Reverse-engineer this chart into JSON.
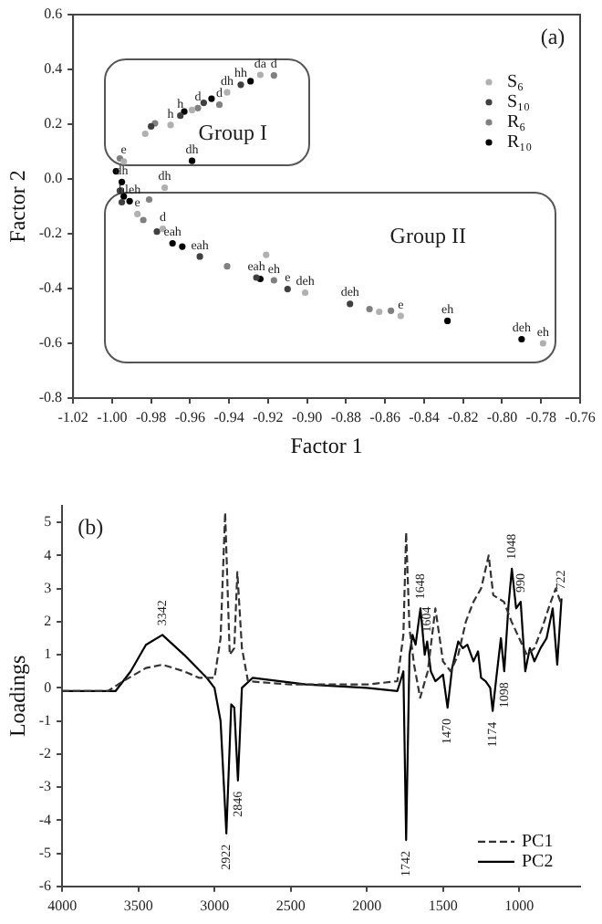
{
  "chart_data": [
    {
      "type": "scatter",
      "xlabel": "Factor 1",
      "ylabel": "Factor 2",
      "xlim": [
        -1.02,
        -0.76
      ],
      "ylim": [
        -0.8,
        0.6
      ],
      "xticks": [
        -1.02,
        {
          "value": -1,
          "label": "-1.00"
        },
        -0.98,
        -0.96,
        -0.94,
        -0.92,
        {
          "value": -0.9,
          "label": "-0.90"
        },
        -0.88,
        -0.86,
        -0.84,
        -0.82,
        {
          "value": -0.8,
          "label": "-0.80"
        },
        -0.78,
        -0.76
      ],
      "yticks": [
        -0.8,
        -0.6,
        -0.4,
        -0.2,
        {
          "value": 0,
          "label": "0.0"
        },
        0.2,
        0.4,
        0.6
      ],
      "legend": "right",
      "marker": "circle",
      "series": [
        {
          "name": "S₆",
          "color": "#b0b0b0",
          "x": [
            -0.994,
            -0.983,
            -0.97,
            -0.959,
            -0.941,
            -0.924,
            -0.973,
            -0.987,
            -0.974,
            -0.921,
            -0.901,
            -0.863,
            -0.852,
            -0.779
          ],
          "values": [
            0.064,
            0.165,
            0.197,
            0.252,
            0.316,
            0.38,
            -0.032,
            -0.128,
            -0.182,
            -0.277,
            -0.415,
            -0.485,
            -0.5,
            -0.6
          ]
        },
        {
          "name": "S₁₀",
          "color": "#404040",
          "x": [
            -0.98,
            -0.965,
            -0.953,
            -0.934,
            -0.996,
            -0.995,
            -0.977,
            -0.955,
            -0.926,
            -0.91,
            -0.878
          ],
          "values": [
            0.192,
            0.231,
            0.278,
            0.344,
            -0.043,
            -0.085,
            -0.192,
            -0.283,
            -0.36,
            -0.402,
            -0.456
          ]
        },
        {
          "name": "R₆",
          "color": "#808080",
          "x": [
            -0.996,
            -0.978,
            -0.956,
            -0.945,
            -0.917,
            -0.981,
            -0.984,
            -0.941,
            -0.917,
            -0.868,
            -0.857
          ],
          "values": [
            0.075,
            0.203,
            0.259,
            0.271,
            0.378,
            -0.075,
            -0.15,
            -0.319,
            -0.37,
            -0.475,
            -0.481
          ]
        },
        {
          "name": "R₁₀",
          "color": "#000000",
          "x": [
            -0.998,
            -0.963,
            -0.949,
            -0.929,
            -0.959,
            -0.995,
            -0.994,
            -0.991,
            -0.969,
            -0.964,
            -0.924,
            -0.828,
            -0.79
          ],
          "values": [
            0.028,
            0.246,
            0.293,
            0.357,
            0.066,
            -0.011,
            -0.064,
            -0.081,
            -0.235,
            -0.247,
            -0.365,
            -0.518,
            -0.585
          ]
        }
      ],
      "annotations": [
        "(a)",
        "Group I",
        "Group II",
        {
          "text": "e",
          "x": -0.994,
          "y": 0.064
        },
        {
          "text": "h",
          "x": -0.965,
          "y": 0.231
        },
        {
          "text": "d",
          "x": -0.956,
          "y": 0.259
        },
        {
          "text": "d",
          "x": -0.945,
          "y": 0.271
        },
        {
          "text": "hh",
          "x": -0.934,
          "y": 0.344
        },
        {
          "text": "da",
          "x": -0.924,
          "y": 0.38
        },
        {
          "text": "h",
          "x": -0.97,
          "y": 0.197
        },
        {
          "text": "d",
          "x": -0.917,
          "y": 0.378
        },
        {
          "text": "dh",
          "x": -0.941,
          "y": 0.316
        },
        {
          "text": "dh",
          "x": -0.959,
          "y": 0.066
        },
        {
          "text": "dh",
          "x": -0.995,
          "y": -0.011
        },
        {
          "text": "dh",
          "x": -0.973,
          "y": -0.032
        },
        {
          "text": "hleh",
          "x": -0.991,
          "y": -0.081
        },
        {
          "text": "e",
          "x": -0.987,
          "y": -0.128
        },
        {
          "text": "d",
          "x": -0.974,
          "y": -0.182
        },
        {
          "text": "eah",
          "x": -0.969,
          "y": -0.235
        },
        {
          "text": "eah",
          "x": -0.955,
          "y": -0.283
        },
        {
          "text": "eah",
          "x": -0.926,
          "y": -0.36
        },
        {
          "text": "eh",
          "x": -0.917,
          "y": -0.37
        },
        {
          "text": "e",
          "x": -0.91,
          "y": -0.402
        },
        {
          "text": "deh",
          "x": -0.901,
          "y": -0.415
        },
        {
          "text": "deh",
          "x": -0.878,
          "y": -0.456
        },
        {
          "text": "e",
          "x": -0.852,
          "y": -0.5
        },
        {
          "text": "eh",
          "x": -0.828,
          "y": -0.518
        },
        {
          "text": "deh",
          "x": -0.79,
          "y": -0.585
        },
        {
          "text": "eh",
          "x": -0.779,
          "y": -0.6
        }
      ]
    },
    {
      "type": "line",
      "ylabel": "Loadings",
      "xlim": [
        4000,
        600
      ],
      "ylim": [
        -6,
        5.5
      ],
      "xticks": [
        4000,
        3500,
        3000,
        2500,
        2000,
        1500,
        1000
      ],
      "yticks": [
        -6,
        -5,
        -4,
        -3,
        -2,
        -1,
        0,
        1,
        2,
        3,
        4,
        5
      ],
      "legend": "bottom right",
      "marker": "none",
      "series": [
        {
          "name": "PC1",
          "color": "#333333",
          "line_style": "dashed",
          "x": [
            4000,
            3700,
            3600,
            3450,
            3342,
            3200,
            3100,
            3000,
            2960,
            2930,
            2900,
            2870,
            2850,
            2820,
            2780,
            2500,
            2000,
            1800,
            1760,
            1742,
            1720,
            1690,
            1650,
            1600,
            1550,
            1500,
            1450,
            1400,
            1350,
            1300,
            1250,
            1200,
            1170,
            1100,
            1050,
            1000,
            950,
            900,
            850,
            800,
            760,
            722
          ],
          "values": [
            -0.1,
            -0.1,
            0.2,
            0.6,
            0.7,
            0.5,
            0.3,
            0.3,
            1.5,
            5.3,
            1.0,
            1.2,
            3.5,
            1.2,
            0.2,
            0.1,
            0.1,
            0.2,
            1.6,
            4.7,
            1.8,
            0.7,
            -0.3,
            0.5,
            2.4,
            0.8,
            0.5,
            1.0,
            2.0,
            2.6,
            3.0,
            4.0,
            2.8,
            2.6,
            2.0,
            1.5,
            1.0,
            1.2,
            1.8,
            2.5,
            3.0,
            2.5
          ]
        },
        {
          "name": "PC2",
          "color": "#000000",
          "line_style": "solid",
          "x": [
            4000,
            3650,
            3550,
            3450,
            3342,
            3200,
            3050,
            3000,
            2960,
            2922,
            2890,
            2870,
            2846,
            2820,
            2750,
            2400,
            2000,
            1800,
            1760,
            1742,
            1720,
            1700,
            1680,
            1648,
            1620,
            1604,
            1580,
            1550,
            1500,
            1470,
            1440,
            1400,
            1370,
            1340,
            1300,
            1270,
            1250,
            1220,
            1190,
            1174,
            1150,
            1120,
            1098,
            1070,
            1048,
            1020,
            990,
            960,
            930,
            900,
            860,
            820,
            780,
            750,
            722
          ],
          "values": [
            -0.1,
            -0.1,
            0.5,
            1.3,
            1.6,
            1.0,
            0.3,
            0,
            -1,
            -4.4,
            -0.5,
            -0.6,
            -2.8,
            0,
            0.3,
            0.1,
            0,
            -0.1,
            0.5,
            -4.6,
            1.0,
            1.6,
            1.3,
            2.4,
            1.0,
            1.4,
            0.5,
            0.2,
            0.4,
            -0.6,
            0.6,
            1.4,
            1.2,
            1.3,
            0.8,
            1.1,
            0.3,
            0.2,
            0,
            -0.7,
            0.3,
            1.5,
            0.5,
            2.5,
            3.6,
            2.4,
            2.6,
            0.5,
            1.2,
            0.8,
            1.2,
            1.5,
            2.4,
            0.7,
            2.7
          ]
        }
      ],
      "annotations": [
        "(b)",
        {
          "text": "3342",
          "x": 3342,
          "y": 1.6
        },
        {
          "text": "2922",
          "x": 2922,
          "y": -4.4
        },
        {
          "text": "2846",
          "x": 2846,
          "y": -2.8
        },
        {
          "text": "1742",
          "x": 1742,
          "y": -4.6
        },
        {
          "text": "1648",
          "x": 1648,
          "y": 2.4
        },
        {
          "text": "1604",
          "x": 1604,
          "y": 1.4
        },
        {
          "text": "1470",
          "x": 1470,
          "y": -0.6
        },
        {
          "text": "1174",
          "x": 1174,
          "y": -0.7
        },
        {
          "text": "1098",
          "x": 1098,
          "y": 0.5
        },
        {
          "text": "1048",
          "x": 1048,
          "y": 3.6
        },
        {
          "text": "990",
          "x": 990,
          "y": 2.6
        },
        {
          "text": "722",
          "x": 722,
          "y": 2.7
        }
      ]
    }
  ]
}
